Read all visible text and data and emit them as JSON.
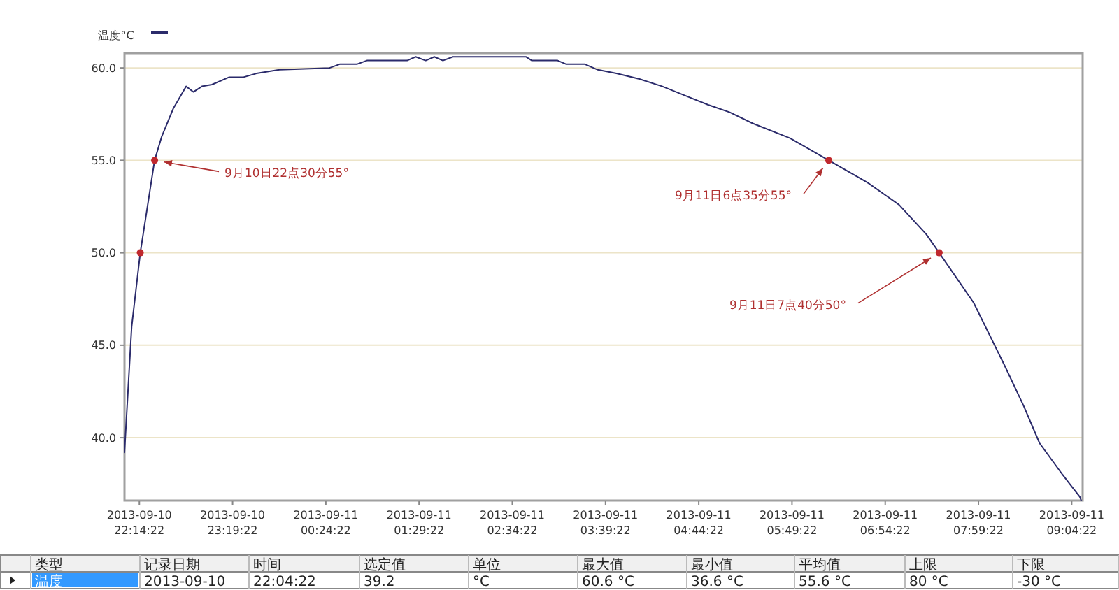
{
  "chart_data": {
    "type": "line",
    "legend": "top left",
    "grid": "y",
    "marker": "none",
    "xlim": [
      "2013-09-10T22:04",
      "2013-09-11T09:12"
    ],
    "xticks": [
      {
        "value": "2013-09-10T22:14:22",
        "label": "2013-09-10 22:14:22"
      },
      {
        "value": "2013-09-10T23:19:22",
        "label": "2013-09-10 23:19:22"
      },
      {
        "value": "2013-09-11T00:24:22",
        "label": "2013-09-11 00:24:22"
      },
      {
        "value": "2013-09-11T01:29:22",
        "label": "2013-09-11 01:29:22"
      },
      {
        "value": "2013-09-11T02:34:22",
        "label": "2013-09-11 02:34:22"
      },
      {
        "value": "2013-09-11T03:39:22",
        "label": "2013-09-11 03:39:22"
      },
      {
        "value": "2013-09-11T04:44:22",
        "label": "2013-09-11 04:44:22"
      },
      {
        "value": "2013-09-11T05:49:22",
        "label": "2013-09-11 05:49:22"
      },
      {
        "value": "2013-09-11T06:54:22",
        "label": "2013-09-11 06:54:22"
      },
      {
        "value": "2013-09-11T07:59:22",
        "label": "2013-09-11 07:59:22"
      },
      {
        "value": "2013-09-11T09:04:22",
        "label": "2013-09-11 09:04:22"
      }
    ],
    "ylim": [
      36.6,
      60.8
    ],
    "yticks": [
      {
        "value": 40,
        "label": "40.0"
      },
      {
        "value": 45,
        "label": "45.0"
      },
      {
        "value": 50,
        "label": "50.0"
      },
      {
        "value": 55,
        "label": "55.0"
      },
      {
        "value": 60,
        "label": "60.0"
      }
    ],
    "series": [
      {
        "name": "温度°C",
        "color": "#2b2b6b",
        "x": [
          "2013-09-10T22:04",
          "2013-09-10T22:09",
          "2013-09-10T22:15",
          "2013-09-10T22:25",
          "2013-09-10T22:30",
          "2013-09-10T22:38",
          "2013-09-10T22:47",
          "2013-09-10T22:52",
          "2013-09-10T22:58",
          "2013-09-10T23:05",
          "2013-09-10T23:17",
          "2013-09-10T23:27",
          "2013-09-10T23:36",
          "2013-09-10T23:52",
          "2013-09-11T00:27",
          "2013-09-11T00:34",
          "2013-09-11T00:46",
          "2013-09-11T00:53",
          "2013-09-11T01:21",
          "2013-09-11T01:27",
          "2013-09-11T01:34",
          "2013-09-11T01:40",
          "2013-09-11T01:46",
          "2013-09-11T01:53",
          "2013-09-11T02:44",
          "2013-09-11T02:48",
          "2013-09-11T02:59",
          "2013-09-11T03:06",
          "2013-09-11T03:12",
          "2013-09-11T03:25",
          "2013-09-11T03:34",
          "2013-09-11T03:47",
          "2013-09-11T04:03",
          "2013-09-11T04:19",
          "2013-09-11T04:35",
          "2013-09-11T04:51",
          "2013-09-11T05:06",
          "2013-09-11T05:22",
          "2013-09-11T05:48",
          "2013-09-11T06:15",
          "2013-09-11T06:42",
          "2013-09-11T07:04",
          "2013-09-11T07:23",
          "2013-09-11T07:32",
          "2013-09-11T07:56",
          "2013-09-11T08:17",
          "2013-09-11T08:31",
          "2013-09-11T08:42",
          "2013-09-11T08:58",
          "2013-09-11T09:10",
          "2013-09-11T09:11"
        ],
        "values": [
          39.2,
          46.0,
          50.0,
          55.0,
          56.3,
          57.8,
          59.0,
          58.7,
          59.0,
          59.1,
          59.5,
          59.5,
          59.7,
          59.9,
          60.0,
          60.2,
          60.2,
          60.4,
          60.4,
          60.6,
          60.4,
          60.6,
          60.4,
          60.6,
          60.6,
          60.4,
          60.4,
          60.4,
          60.2,
          60.2,
          59.9,
          59.7,
          59.4,
          59.0,
          58.5,
          58.0,
          57.6,
          57.0,
          56.2,
          55.0,
          53.8,
          52.6,
          51.0,
          50.0,
          47.3,
          44.0,
          41.7,
          39.7,
          38.0,
          36.8,
          36.6
        ]
      },
      {
        "type": "scatter",
        "color": "#c0282d",
        "marker": "circle",
        "x": [
          "2013-09-10T22:15",
          "2013-09-10T22:25",
          "2013-09-11T06:15",
          "2013-09-11T07:32"
        ],
        "values": [
          50.0,
          55.0,
          55.0,
          50.0
        ]
      }
    ],
    "annotations": [
      "类型",
      "记录日期",
      "时间",
      "选定值",
      "单位",
      "最大值",
      "最小值",
      "平均值",
      "上限",
      "下限",
      "温度",
      "2013-09-10",
      "22:04:22",
      "39.2",
      "°C",
      "60.6 °C",
      "36.6 °C",
      "55.6 °C",
      "80 °C",
      "-30 °C",
      {
        "text": "9月10日22点30分55°",
        "x": "2013-09-10T22:25",
        "y": 55
      },
      {
        "text": "9月11日6点35分55°",
        "x": "2013-09-11T06:15",
        "y": 55
      },
      {
        "text": "9月11日7点40分50°",
        "x": "2013-09-11T07:32",
        "y": 50
      }
    ]
  }
}
